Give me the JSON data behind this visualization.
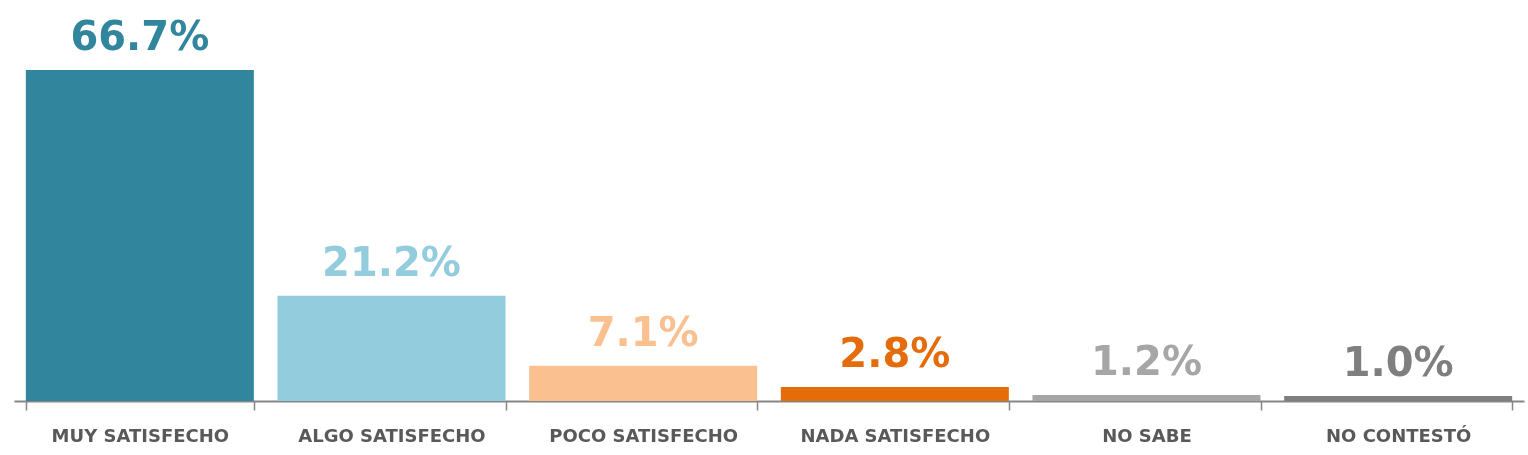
{
  "chart_data": {
    "type": "bar",
    "categories": [
      "MUY SATISFECHO",
      "ALGO SATISFECHO",
      "POCO SATISFECHO",
      "NADA SATISFECHO",
      "NO SABE",
      "NO CONTESTÓ"
    ],
    "values": [
      66.7,
      21.2,
      7.1,
      2.8,
      1.2,
      1.0
    ],
    "colors": [
      "#31859c",
      "#93cddd",
      "#fac090",
      "#e46c0a",
      "#a6a6a6",
      "#7f7f7f"
    ],
    "value_labels": [
      "66.7%",
      "21.2%",
      "7.1%",
      "2.8%",
      "1.2%",
      "1.0%"
    ],
    "grid": false
  }
}
